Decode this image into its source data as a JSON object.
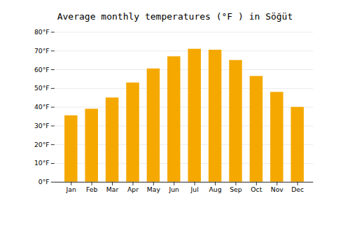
{
  "chart_data": {
    "type": "bar",
    "title": "Average monthly temperatures (°F ) in Söğüt",
    "categories": [
      "Jan",
      "Feb",
      "Mar",
      "Apr",
      "May",
      "Jun",
      "Jul",
      "Aug",
      "Sep",
      "Oct",
      "Nov",
      "Dec"
    ],
    "values": [
      35.5,
      39.0,
      45.0,
      53.0,
      60.5,
      67.0,
      71.0,
      70.5,
      65.0,
      56.5,
      48.0,
      40.0
    ],
    "color": "#F5A800",
    "ylim": [
      0,
      80
    ],
    "yticks": [
      {
        "value": 0,
        "label": "0°F"
      },
      {
        "value": 10,
        "label": "10°F"
      },
      {
        "value": 20,
        "label": "20°F"
      },
      {
        "value": 30,
        "label": "30°F"
      },
      {
        "value": 40,
        "label": "40°F"
      },
      {
        "value": 50,
        "label": "50°F"
      },
      {
        "value": 60,
        "label": "60°F"
      },
      {
        "value": 70,
        "label": "70°F"
      },
      {
        "value": 80,
        "label": "80°F"
      }
    ],
    "grid": true
  }
}
